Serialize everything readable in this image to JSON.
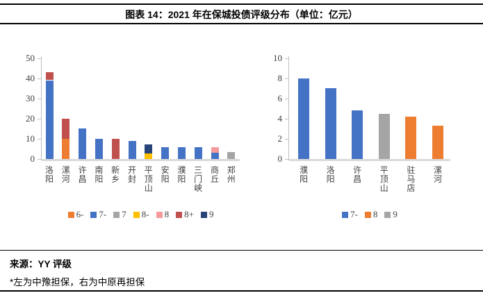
{
  "header": {
    "title": "图表 14：2021 年在保城投债评级分布（单位：亿元）"
  },
  "footer": {
    "source": "来源：YY 评级",
    "note": "*左为中豫担保，右为中原再担保"
  },
  "colors": {
    "blue": "#4472C4",
    "orange": "#ED7D31",
    "gray": "#A5A5A5",
    "yellow": "#FFC000",
    "pink": "#F5999D",
    "brick": "#C0504D",
    "navy": "#264478",
    "axis": "#BFBFBF",
    "baseline": "#D9D9D9"
  },
  "chart_data": [
    {
      "type": "bar",
      "stacked": true,
      "title": "",
      "xlabel": "",
      "ylabel": "",
      "ylim": [
        0,
        50
      ],
      "yticks": [
        0,
        10,
        20,
        30,
        40,
        50
      ],
      "grid": false,
      "legend_position": "bottom",
      "categories": [
        "洛阳",
        "漯河",
        "许昌",
        "南阳",
        "新乡",
        "开封",
        "平顶山",
        "安阳",
        "濮阳",
        "三门峡",
        "商丘",
        "郑州"
      ],
      "legend": [
        {
          "label": "6-",
          "color": "#ED7D31"
        },
        {
          "label": "7-",
          "color": "#4472C4"
        },
        {
          "label": "7",
          "color": "#A5A5A5"
        },
        {
          "label": "8-",
          "color": "#FFC000"
        },
        {
          "label": "8",
          "color": "#F5999D"
        },
        {
          "label": "8+",
          "color": "#C0504D"
        },
        {
          "label": "9",
          "color": "#264478"
        }
      ],
      "series": [
        {
          "name": "6-",
          "values": [
            0,
            10,
            0,
            0,
            0,
            0,
            0,
            0,
            0,
            0,
            0,
            0
          ]
        },
        {
          "name": "7-",
          "values": [
            39,
            0,
            15,
            10,
            0,
            9,
            0,
            6,
            6,
            6,
            3,
            0
          ]
        },
        {
          "name": "7",
          "values": [
            0,
            0,
            0,
            0,
            0,
            0,
            0,
            0,
            0,
            0,
            0,
            3.5
          ]
        },
        {
          "name": "8-",
          "values": [
            0,
            0,
            0,
            0,
            0,
            0,
            2.7,
            0,
            0,
            0,
            0,
            0
          ]
        },
        {
          "name": "8",
          "values": [
            0,
            0,
            0,
            0,
            0,
            0,
            0,
            0,
            0,
            0,
            3,
            0
          ]
        },
        {
          "name": "8+",
          "values": [
            4,
            10,
            0,
            0,
            10,
            0,
            0,
            0,
            0,
            0,
            0,
            0
          ]
        },
        {
          "name": "9",
          "values": [
            0,
            0,
            0,
            0,
            0,
            0,
            4.5,
            0,
            0,
            0,
            0,
            0
          ]
        }
      ]
    },
    {
      "type": "bar",
      "stacked": false,
      "title": "",
      "xlabel": "",
      "ylabel": "",
      "ylim": [
        0,
        10
      ],
      "yticks": [
        0,
        2,
        4,
        6,
        8,
        10
      ],
      "grid": false,
      "legend_position": "bottom",
      "categories": [
        "濮阳",
        "洛阳",
        "许昌",
        "平顶山",
        "驻马店",
        "漯河"
      ],
      "legend": [
        {
          "label": "7-",
          "color": "#4472C4"
        },
        {
          "label": "8",
          "color": "#ED7D31"
        },
        {
          "label": "9",
          "color": "#A5A5A5"
        }
      ],
      "values": [
        8,
        7,
        4.8,
        4.5,
        4.2,
        3.3
      ],
      "bar_ratings": [
        "7-",
        "7-",
        "7-",
        "9",
        "8",
        "8"
      ]
    }
  ]
}
